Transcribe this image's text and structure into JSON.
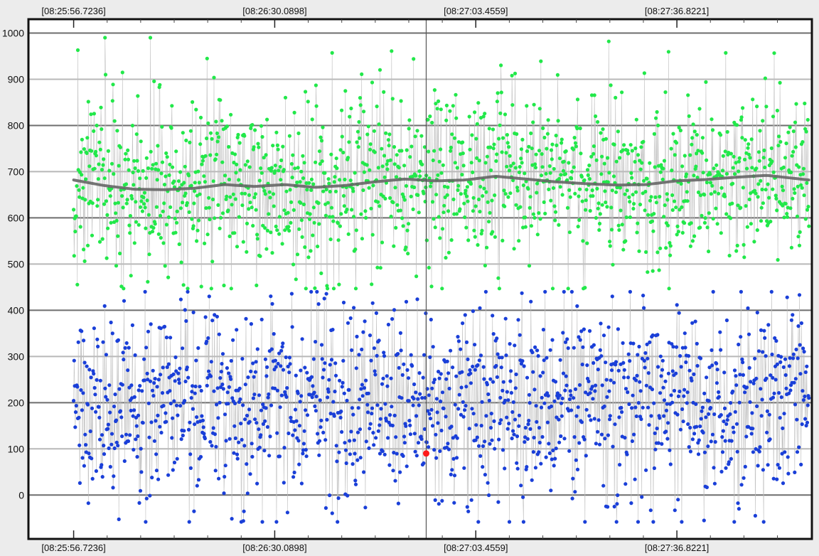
{
  "chart_data": {
    "type": "scatter",
    "title": "",
    "xlabel": "",
    "ylabel": "",
    "x_tick_labels": [
      "[08:25:56.7236]",
      "[08:26:30.0898]",
      "[08:27:03.4559]",
      "[08:27:36.8221]"
    ],
    "x_tick_seconds": [
      0,
      33.3662,
      66.7323,
      100.0985
    ],
    "x_range_seconds": [
      -7.5,
      122.5
    ],
    "y_ticks": [
      0,
      100,
      200,
      300,
      400,
      500,
      600,
      700,
      800,
      900,
      1000
    ],
    "ylim": [
      -95,
      1030
    ],
    "grid": true,
    "cursor_x_seconds": 58.5,
    "highlight_point": {
      "x_seconds": 58.5,
      "y": 90,
      "color": "#ff1a1a"
    },
    "series": [
      {
        "color": "#22e84a",
        "point_count": 1400,
        "x_range_seconds": [
          0,
          122
        ],
        "typical_range": [
          500,
          860
        ],
        "observed_min": 447,
        "observed_max": 990,
        "peaks": [
          {
            "x_seconds": 0.7,
            "y": 963
          },
          {
            "x_seconds": 5.2,
            "y": 990
          },
          {
            "x_seconds": 5.3,
            "y": 910
          },
          {
            "x_seconds": 14.3,
            "y": 888
          },
          {
            "x_seconds": 42.9,
            "y": 957
          },
          {
            "x_seconds": 56.4,
            "y": 944
          },
          {
            "x_seconds": 88.8,
            "y": 982
          },
          {
            "x_seconds": 108.2,
            "y": 957
          },
          {
            "x_seconds": 79.5,
            "y": 447
          }
        ],
        "trend": {
          "color": "#666666",
          "x_seconds": [
            0,
            5,
            10,
            15,
            20,
            25,
            30,
            35,
            40,
            45,
            50,
            55,
            60,
            65,
            70,
            75,
            80,
            85,
            90,
            95,
            100,
            105,
            110,
            115,
            122
          ],
          "y": [
            682,
            670,
            662,
            661,
            664,
            672,
            668,
            672,
            666,
            670,
            678,
            684,
            680,
            682,
            690,
            684,
            678,
            674,
            671,
            672,
            680,
            683,
            688,
            692,
            682
          ]
        }
      },
      {
        "color": "#1a3fd8",
        "point_count": 1400,
        "x_range_seconds": [
          0,
          122
        ],
        "typical_range": [
          0,
          400
        ],
        "observed_min": -58,
        "observed_max": 440,
        "peaks": [
          {
            "x_seconds": 22.5,
            "y": 430
          },
          {
            "x_seconds": 68.4,
            "y": 440
          },
          {
            "x_seconds": 94.5,
            "y": 432
          },
          {
            "x_seconds": 118.4,
            "y": 428
          },
          {
            "x_seconds": 72.3,
            "y": -58
          },
          {
            "x_seconds": 104.6,
            "y": -55
          }
        ]
      }
    ]
  }
}
